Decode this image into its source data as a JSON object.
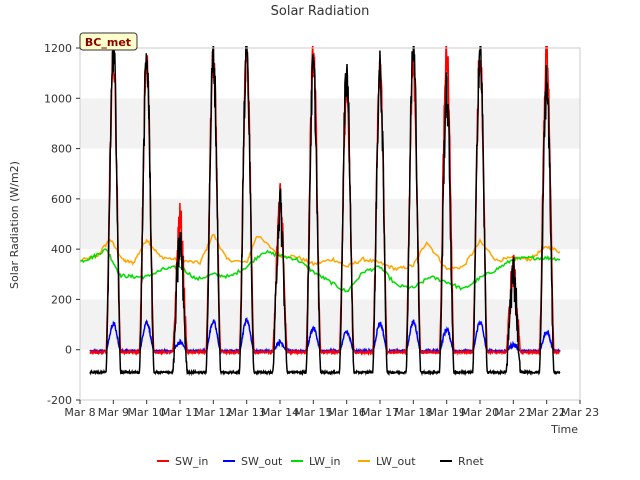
{
  "chart_data": {
    "type": "line",
    "title": "Solar Radiation",
    "xlabel": "Time",
    "ylabel": "Solar Radiation (W/m2)",
    "station_label": "BC_met",
    "x_ticks": [
      "Mar 8",
      "Mar 9",
      "Mar 10",
      "Mar 11",
      "Mar 12",
      "Mar 13",
      "Mar 14",
      "Mar 15",
      "Mar 16",
      "Mar 17",
      "Mar 18",
      "Mar 19",
      "Mar 20",
      "Mar 21",
      "Mar 22",
      "Mar 23"
    ],
    "x_range_days": [
      8,
      23
    ],
    "y_ticks": [
      -200,
      0,
      200,
      400,
      600,
      800,
      1000,
      1200
    ],
    "ylim": [
      -200,
      1200
    ],
    "grid": "horizontal bands",
    "legend_position": "bottom",
    "x_unit": "day of March 2024 (fractional)",
    "series": [
      {
        "name": "SW_in",
        "color": "#ff0000",
        "peaks": [
          {
            "day": 9,
            "peak": 1150
          },
          {
            "day": 10,
            "peak": 1130
          },
          {
            "day": 11,
            "peak": 510
          },
          {
            "day": 12,
            "peak": 1150
          },
          {
            "day": 13,
            "peak": 1175
          },
          {
            "day": 14,
            "peak": 590
          },
          {
            "day": 15,
            "peak": 1165
          },
          {
            "day": 16,
            "peak": 1005
          },
          {
            "day": 17,
            "peak": 1080
          },
          {
            "day": 18,
            "peak": 1120
          },
          {
            "day": 19,
            "peak": 1180
          },
          {
            "day": 20,
            "peak": 1175
          },
          {
            "day": 21,
            "peak": 310
          },
          {
            "day": 22,
            "peak": 1190
          }
        ],
        "night_value": -10
      },
      {
        "name": "SW_out",
        "color": "#0000ff",
        "peaks": [
          {
            "day": 9,
            "peak": 105
          },
          {
            "day": 10,
            "peak": 110
          },
          {
            "day": 11,
            "peak": 30
          },
          {
            "day": 12,
            "peak": 112
          },
          {
            "day": 13,
            "peak": 118
          },
          {
            "day": 14,
            "peak": 30
          },
          {
            "day": 15,
            "peak": 85
          },
          {
            "day": 16,
            "peak": 70
          },
          {
            "day": 17,
            "peak": 105
          },
          {
            "day": 18,
            "peak": 110
          },
          {
            "day": 19,
            "peak": 80
          },
          {
            "day": 20,
            "peak": 110
          },
          {
            "day": 21,
            "peak": 20
          },
          {
            "day": 22,
            "peak": 70
          }
        ],
        "night_value": -5
      },
      {
        "name": "LW_in",
        "color": "#00dd00",
        "x": [
          8.0,
          8.4,
          8.8,
          9.2,
          9.6,
          10.0,
          10.5,
          11.0,
          11.5,
          12.0,
          12.5,
          13.0,
          13.5,
          14.0,
          14.5,
          15.0,
          15.5,
          16.0,
          16.5,
          17.0,
          17.5,
          18.0,
          18.5,
          19.0,
          19.5,
          20.0,
          20.5,
          21.0,
          21.5,
          22.0,
          22.4
        ],
        "values": [
          350,
          370,
          400,
          295,
          290,
          290,
          320,
          330,
          280,
          300,
          290,
          330,
          390,
          375,
          360,
          310,
          270,
          230,
          310,
          330,
          255,
          245,
          290,
          270,
          240,
          285,
          320,
          360,
          365,
          365,
          360
        ]
      },
      {
        "name": "LW_out",
        "color": "#ffa500",
        "x": [
          8.0,
          8.5,
          8.9,
          9.3,
          9.6,
          10.0,
          10.4,
          11.0,
          11.6,
          12.0,
          12.4,
          13.0,
          13.3,
          14.0,
          14.5,
          15.0,
          15.6,
          16.0,
          16.5,
          17.0,
          17.5,
          18.0,
          18.4,
          19.0,
          19.5,
          20.0,
          20.5,
          21.0,
          21.5,
          22.0,
          22.4
        ],
        "values": [
          355,
          370,
          440,
          355,
          345,
          440,
          370,
          355,
          345,
          460,
          360,
          345,
          455,
          375,
          370,
          340,
          360,
          330,
          360,
          345,
          320,
          335,
          430,
          320,
          330,
          430,
          355,
          365,
          360,
          410,
          390
        ]
      },
      {
        "name": "Rnet",
        "color": "#000000",
        "peaks": [
          {
            "day": 9,
            "peak": 1190
          },
          {
            "day": 10,
            "peak": 1150
          },
          {
            "day": 11,
            "peak": 420
          },
          {
            "day": 12,
            "peak": 1160
          },
          {
            "day": 13,
            "peak": 1180
          },
          {
            "day": 14,
            "peak": 560
          },
          {
            "day": 15,
            "peak": 1110
          },
          {
            "day": 16,
            "peak": 1100
          },
          {
            "day": 17,
            "peak": 1095
          },
          {
            "day": 18,
            "peak": 1200
          },
          {
            "day": 19,
            "peak": 1010
          },
          {
            "day": 20,
            "peak": 1195
          },
          {
            "day": 21,
            "peak": 300
          },
          {
            "day": 22,
            "peak": 1050
          }
        ],
        "night_value": -90
      }
    ]
  }
}
